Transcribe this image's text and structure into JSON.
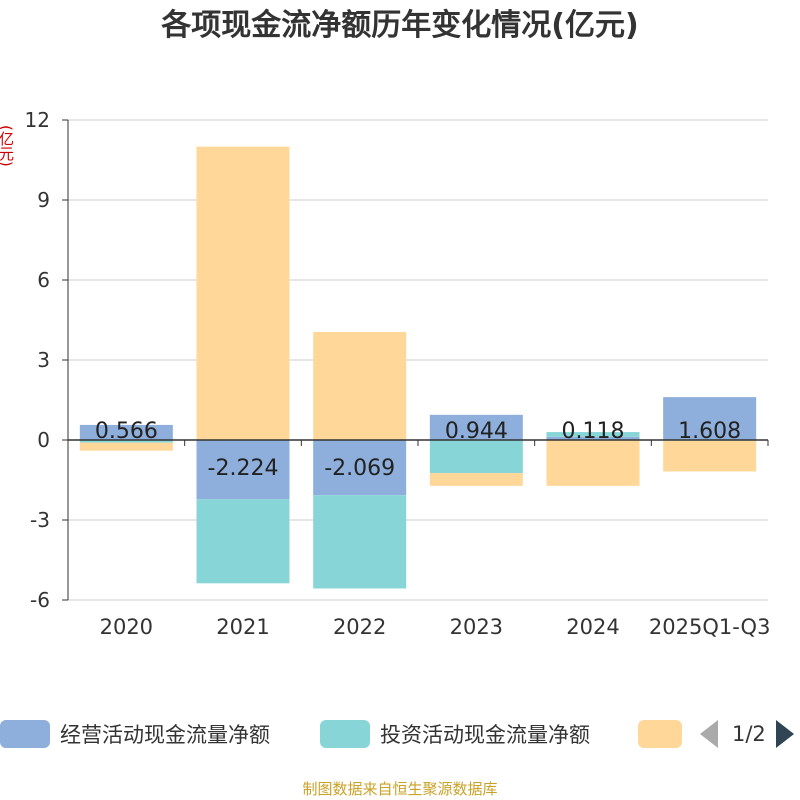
{
  "chart_data": {
    "type": "bar",
    "stacked": true,
    "title": "各项现金流净额历年变化情况(亿元)",
    "ylabel": "(亿元)",
    "categories": [
      "2020",
      "2021",
      "2022",
      "2023",
      "2024",
      "2025Q1-Q3"
    ],
    "ylim": [
      -6,
      12
    ],
    "yticks": [
      12,
      9,
      6,
      3,
      0,
      -3,
      -6
    ],
    "series": [
      {
        "name": "经营活动现金流量净额",
        "color": "#8eaedb",
        "values": [
          0.566,
          -2.224,
          -2.069,
          0.944,
          0.118,
          1.608
        ],
        "labels": [
          "0.566",
          "-2.224",
          "-2.069",
          "0.944",
          "0.118",
          "1.608"
        ]
      },
      {
        "name": "投资活动现金流量净额",
        "color": "#88d5d8",
        "values": [
          -0.1,
          -3.15,
          -3.5,
          -1.24,
          0.18,
          -0.03
        ]
      },
      {
        "name": "",
        "color": "#ffd899",
        "values": [
          -0.3,
          11.0,
          4.05,
          -0.48,
          -1.72,
          -1.15
        ]
      }
    ],
    "legend": {
      "page": "1/2"
    }
  },
  "source": "制图数据来自恒生聚源数据库"
}
